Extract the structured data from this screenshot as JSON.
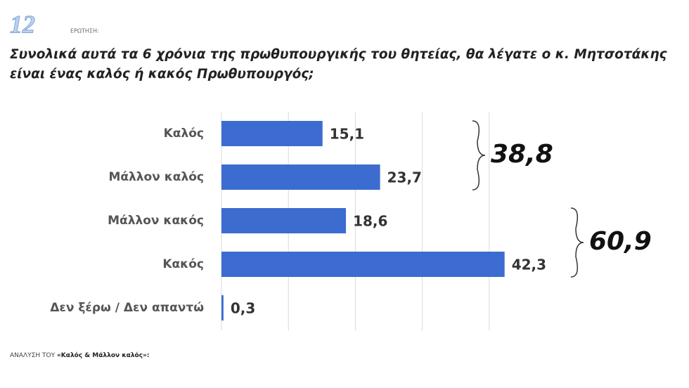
{
  "header": {
    "number": "12",
    "label": "ΕΡΩΤΗΣΗ:"
  },
  "chart_data": {
    "type": "bar",
    "orientation": "horizontal",
    "title": [
      "Συνολικά αυτά τα 6 χρόνια της πρωθυπουργικής του θητείας, θα λέγατε ο κ. Μητσοτάκης",
      "είναι ένας καλός ή κακός Πρωθυπουργός;"
    ],
    "categories": [
      "Καλός",
      "Μάλλον καλός",
      "Μάλλον κακός",
      "Κακός",
      "Δεν ξέρω / Δεν απαντώ"
    ],
    "values": [
      15.1,
      23.7,
      18.6,
      42.3,
      0.3
    ],
    "value_labels": [
      "15,1",
      "23,7",
      "18,6",
      "42,3",
      "0,3"
    ],
    "color": "#3d6cd0",
    "xlim": [
      0,
      50
    ],
    "xticks": [
      0,
      10,
      20,
      30,
      40
    ],
    "grid": true,
    "group_totals": {
      "values": [
        38.8,
        60.9
      ],
      "value_labels": [
        "38,8",
        "60,9"
      ]
    }
  },
  "footer": {
    "label": "ΑΝΑΛΥΣΗ ΤΟΥ",
    "subject": "«Καλός & Μάλλον καλός»:"
  }
}
